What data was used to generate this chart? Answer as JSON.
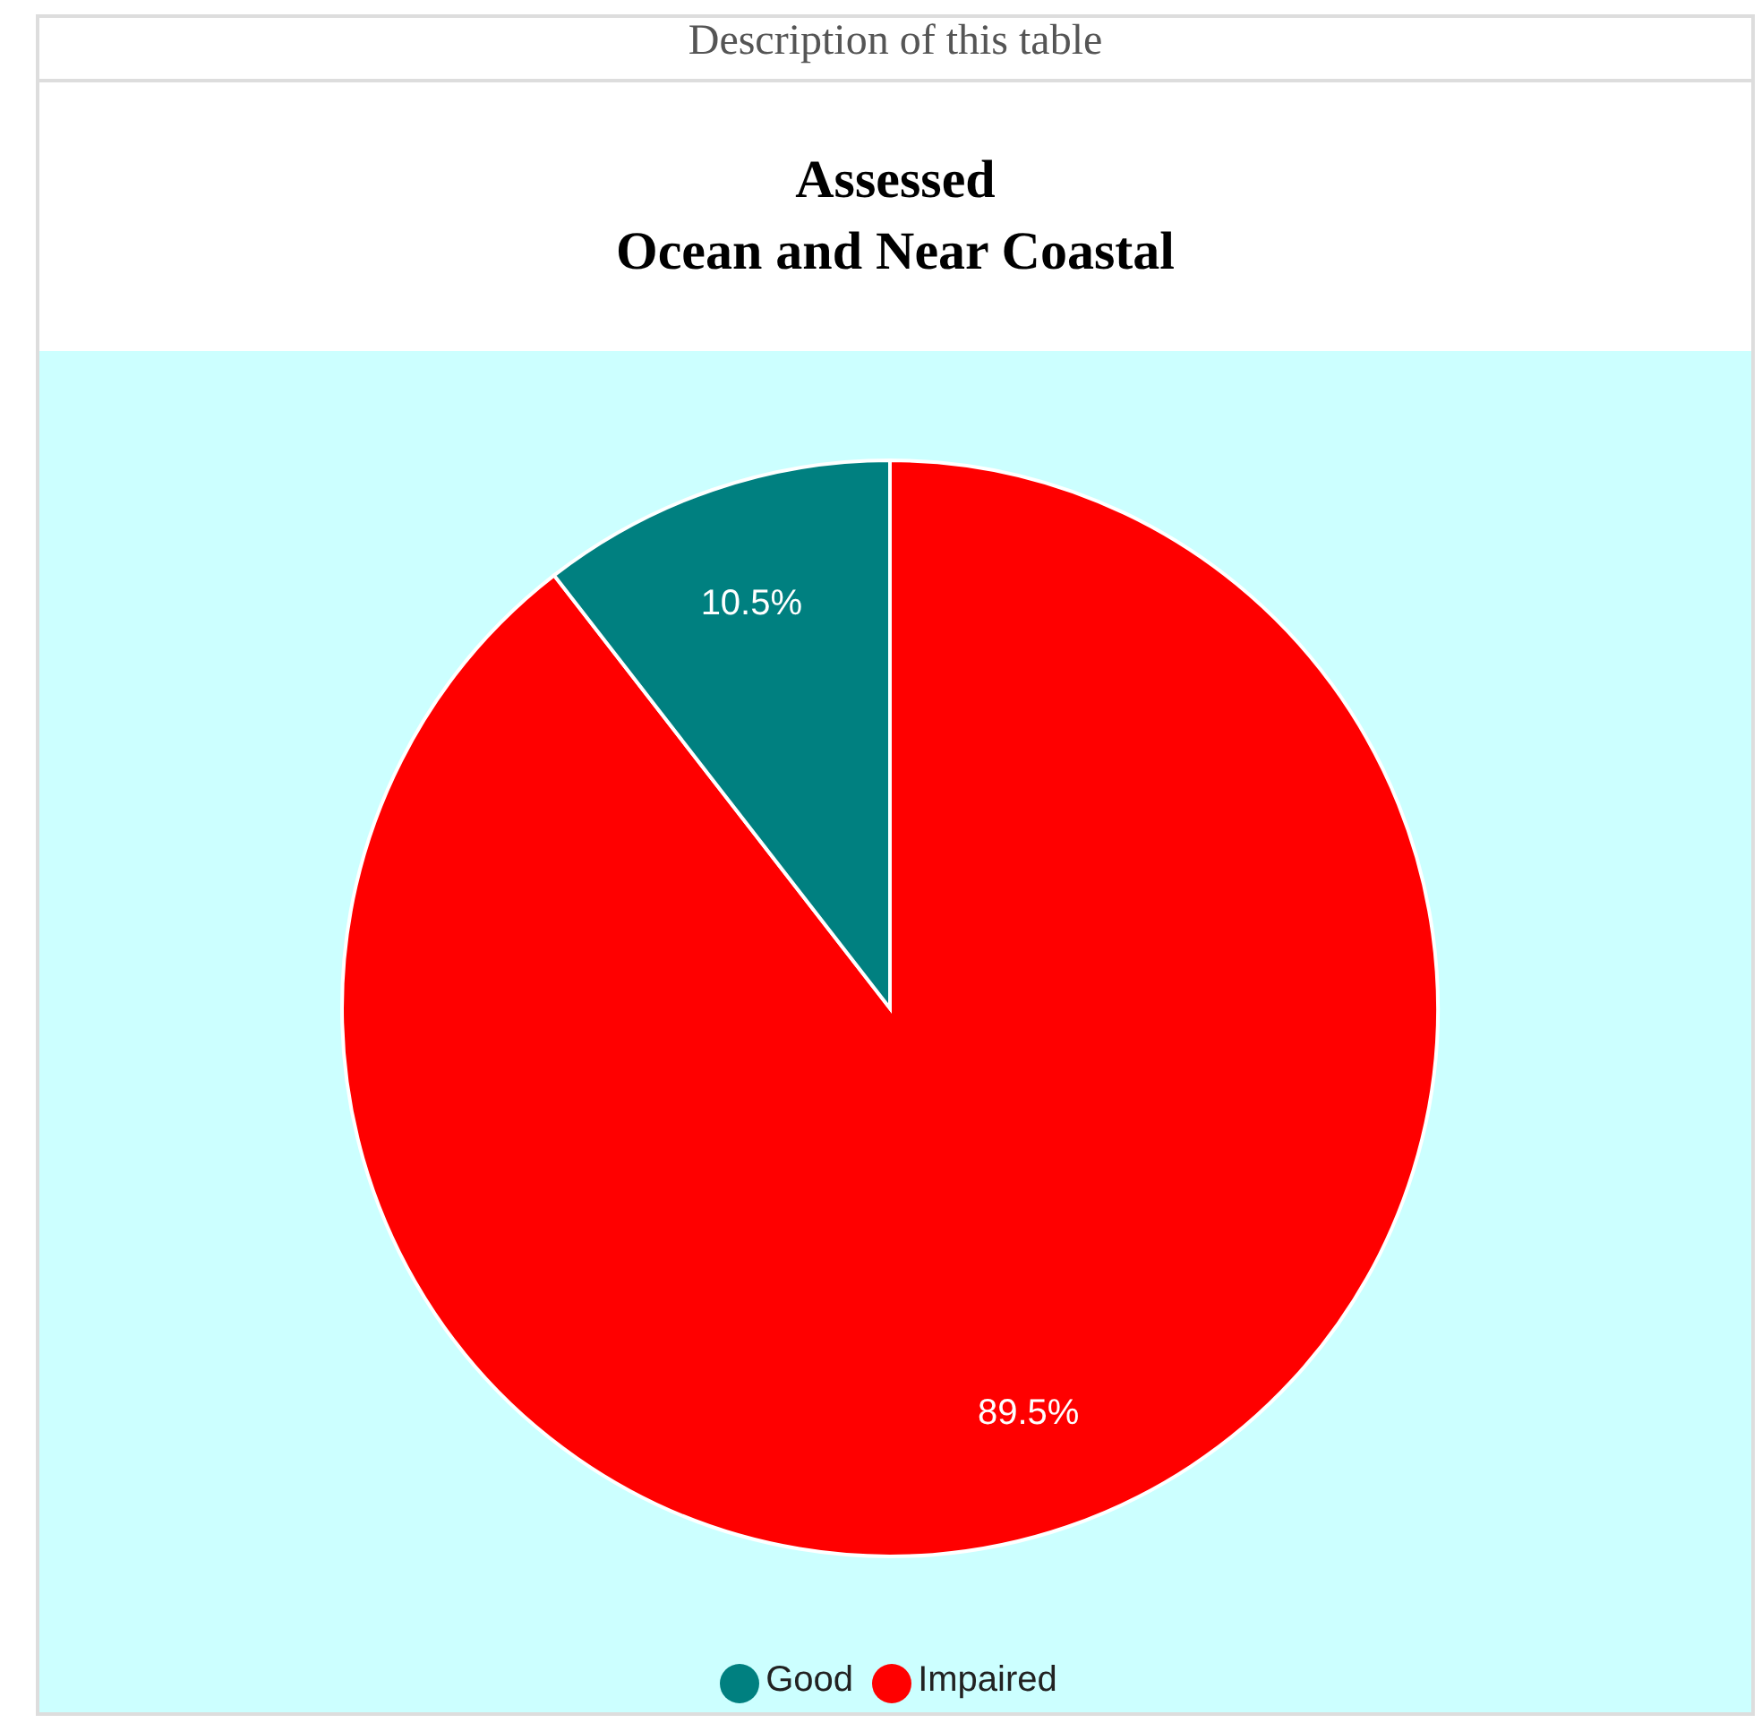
{
  "chart_data": {
    "type": "pie",
    "title": "Assessed\nOcean and Near Coastal",
    "annotations": [
      "Description of this table"
    ],
    "categories": [
      "Impaired",
      "Good"
    ],
    "values": [
      89.5,
      10.5
    ],
    "colors": [
      "#ff0000",
      "#008080"
    ],
    "value_labels": [
      "89.5%",
      "10.5%"
    ],
    "legend": "bottom"
  }
}
